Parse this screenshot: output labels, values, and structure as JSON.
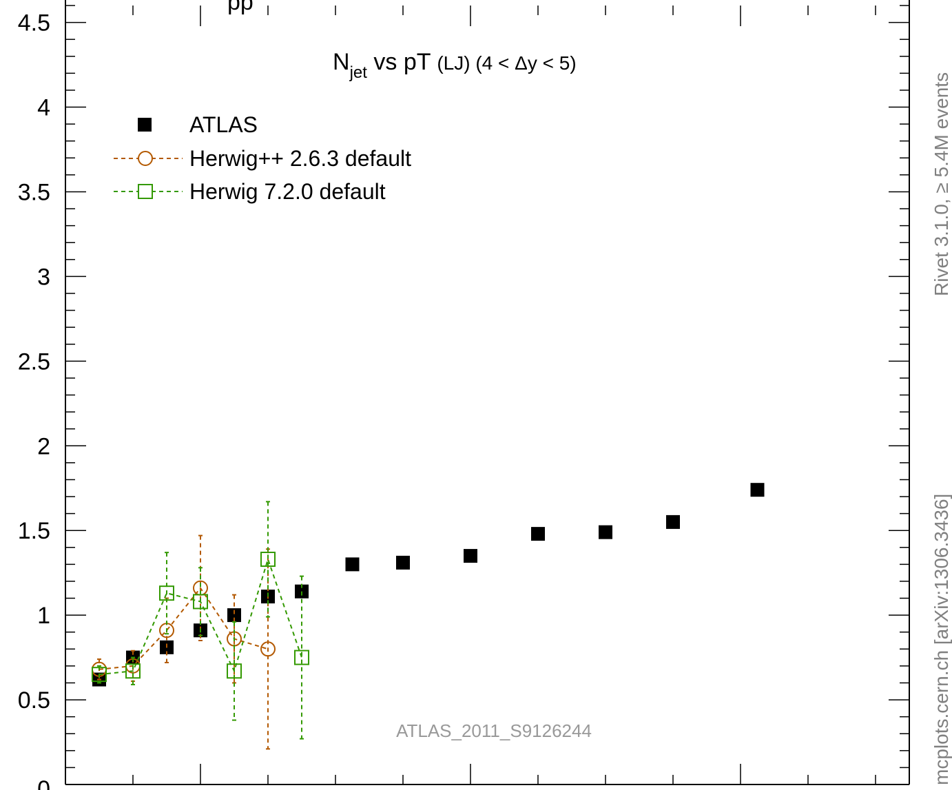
{
  "chart_data": {
    "type": "scatter",
    "title": {
      "main": "N",
      "sub": "jet",
      "rest": " vs pT ",
      "small": "(LJ) (4 < Δy < 5)"
    },
    "xlabel": "",
    "ylabel": "",
    "xlim": [
      0,
      12.5
    ],
    "ylim": [
      0,
      4.6
    ],
    "yticks": [
      0.5,
      1,
      1.5,
      2,
      2.5,
      3,
      3.5,
      4,
      4.5
    ],
    "ytick_labels": [
      "0.5",
      "1",
      "1.5",
      "2",
      "2.5",
      "3",
      "3.5",
      "4",
      "4.5"
    ],
    "bottom_partial_label": "0",
    "top_partial_label": "pp",
    "grid": false,
    "legend_position": "top-left",
    "annotation": "ATLAS_2011_S9126244",
    "side_texts": [
      "Rivet 3.1.0, ≥ 5.4M events",
      "mcplots.cern.ch [arXiv:1306.3436]"
    ],
    "series": [
      {
        "name": "ATLAS",
        "marker": "filled-square",
        "color": "#000000",
        "x": [
          0.5,
          1.0,
          1.5,
          2.0,
          2.5,
          3.0,
          3.5,
          4.25,
          5.0,
          6.0,
          7.0,
          8.0,
          9.0,
          10.25
        ],
        "y": [
          0.62,
          0.75,
          0.81,
          0.91,
          1.0,
          1.11,
          1.14,
          1.3,
          1.31,
          1.35,
          1.48,
          1.49,
          1.55,
          1.74
        ]
      },
      {
        "name": "Herwig++ 2.6.3 default",
        "marker": "open-circle",
        "color": "#b35900",
        "line": "dashed",
        "x": [
          0.5,
          1.0,
          1.5,
          2.0,
          2.5,
          3.0
        ],
        "y": [
          0.68,
          0.7,
          0.91,
          1.16,
          0.86,
          0.8
        ],
        "err": [
          0.06,
          0.09,
          0.19,
          0.31,
          0.26,
          0.59
        ]
      },
      {
        "name": "Herwig 7.2.0 default",
        "marker": "open-square",
        "color": "#339900",
        "line": "dashed",
        "x": [
          0.5,
          1.0,
          1.5,
          2.0,
          2.5,
          3.0,
          3.5
        ],
        "y": [
          0.65,
          0.67,
          1.13,
          1.08,
          0.67,
          1.33,
          0.75
        ],
        "err": [
          0.05,
          0.08,
          0.24,
          0.2,
          0.29,
          0.34,
          0.48
        ]
      }
    ]
  }
}
